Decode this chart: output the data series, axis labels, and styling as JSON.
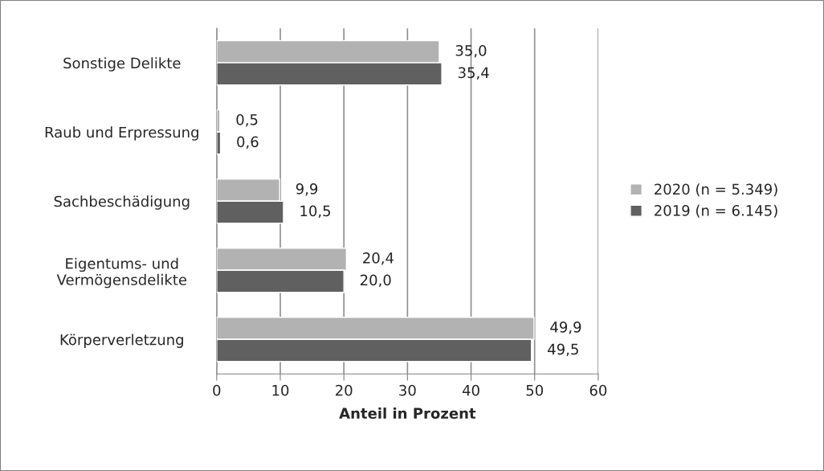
{
  "chart_data": {
    "type": "bar",
    "orientation": "horizontal",
    "categories": [
      "Sonstige Delikte",
      "Raub und Erpressung",
      "Sachbeschädigung",
      "Eigentums- und\nVermögensdelikte",
      "Körperverletzung"
    ],
    "series": [
      {
        "name": "2020 (n = 5.349)",
        "color": "#b2b2b2",
        "values": [
          35.0,
          0.5,
          9.9,
          20.4,
          49.9
        ],
        "value_labels": [
          "35,0",
          "0,5",
          "9,9",
          "20,4",
          "49,9"
        ]
      },
      {
        "name": "2019 (n = 6.145)",
        "color": "#606060",
        "values": [
          35.4,
          0.6,
          10.5,
          20.0,
          49.5
        ],
        "value_labels": [
          "35,4",
          "0,6",
          "10,5",
          "20,0",
          "49,5"
        ]
      }
    ],
    "xlabel": "Anteil in Prozent",
    "xlim": [
      0,
      60
    ],
    "xticks": [
      0,
      10,
      20,
      30,
      40,
      50,
      60
    ],
    "grid": "x",
    "legend": "right"
  }
}
